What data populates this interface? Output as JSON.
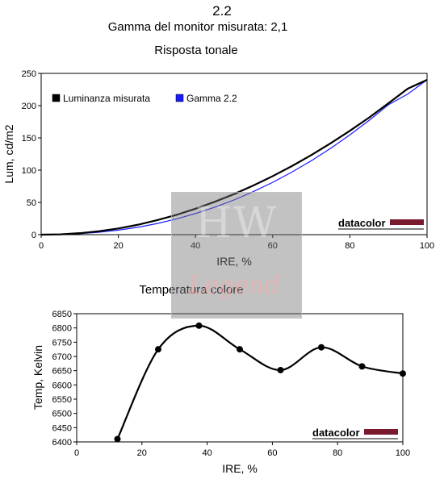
{
  "header": {
    "title": "2.2",
    "subtitle": "Gamma del monitor misurata: 2,1"
  },
  "watermark": {
    "logo_text": "HW",
    "logo_subtext": "Legend"
  },
  "brand": {
    "logo_text": "datacolor",
    "bar_color": "#7a1a2e"
  },
  "chart_data": [
    {
      "type": "line",
      "title": "Risposta tonale",
      "xlabel": "IRE, %",
      "ylabel": "Lum, cd/m2",
      "xlim": [
        0,
        100
      ],
      "ylim": [
        0,
        250
      ],
      "x_ticks": [
        "0",
        "20",
        "40",
        "60",
        "80",
        "100"
      ],
      "y_ticks": [
        "0",
        "50",
        "100",
        "150",
        "200",
        "250"
      ],
      "grid": false,
      "legend_position": "top-left",
      "series": [
        {
          "name": "Luminanza misurata",
          "color": "#000000",
          "x": [
            0,
            5,
            10,
            15,
            20,
            25,
            30,
            35,
            40,
            45,
            50,
            55,
            60,
            65,
            70,
            75,
            80,
            85,
            90,
            95,
            100
          ],
          "y": [
            0,
            0.5,
            2.3,
            5.3,
            9.6,
            15.3,
            22.4,
            30.6,
            40.2,
            51.0,
            62.9,
            76.2,
            90.7,
            106.4,
            123.4,
            141.6,
            161.0,
            181.6,
            203.7,
            226.3,
            240.0
          ]
        },
        {
          "name": "Gamma 2.2",
          "color": "#1a1aff",
          "x": [
            0,
            5,
            10,
            15,
            20,
            25,
            30,
            35,
            40,
            45,
            50,
            55,
            60,
            65,
            70,
            75,
            80,
            85,
            90,
            95,
            100
          ],
          "y": [
            0,
            0.3,
            1.5,
            3.7,
            7.0,
            11.4,
            17.2,
            24.3,
            32.8,
            42.6,
            53.9,
            66.8,
            81.1,
            97.0,
            114.6,
            133.8,
            154.7,
            177.2,
            201.4,
            218.0,
            240.0
          ]
        }
      ]
    },
    {
      "type": "line",
      "title": "Temperatura colore",
      "xlabel": "IRE, %",
      "ylabel": "Temp, Kelvin",
      "xlim": [
        0,
        100
      ],
      "ylim": [
        6400,
        6850
      ],
      "x_ticks": [
        "0",
        "20",
        "40",
        "60",
        "80",
        "100"
      ],
      "y_ticks": [
        "6400",
        "6450",
        "6500",
        "6550",
        "6600",
        "6650",
        "6700",
        "6750",
        "6800",
        "6850"
      ],
      "grid": false,
      "series": [
        {
          "color": "#000000",
          "x": [
            12.5,
            25,
            37.5,
            50,
            62.5,
            75,
            87.5,
            100
          ],
          "y": [
            6410,
            6725,
            6808,
            6725,
            6652,
            6732,
            6665,
            6640
          ]
        }
      ]
    }
  ]
}
